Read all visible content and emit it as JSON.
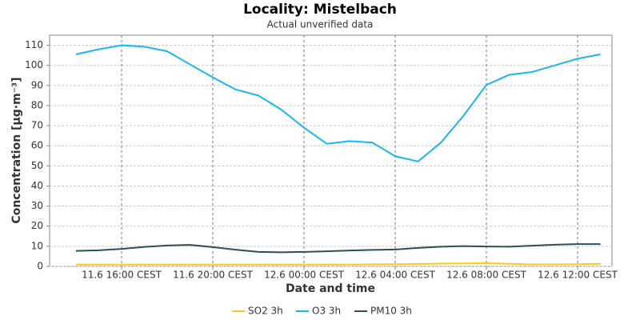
{
  "chart_data": {
    "type": "line",
    "title": "Locality: Mistelbach",
    "subtitle": "Actual unverified data",
    "x_label": "Date and time",
    "y_label": "Concentration [µg·m⁻³]",
    "x": [
      "11.6 14:00 CEST",
      "11.6 15:00 CEST",
      "11.6 16:00 CEST",
      "11.6 17:00 CEST",
      "11.6 18:00 CEST",
      "11.6 19:00 CEST",
      "11.6 20:00 CEST",
      "11.6 21:00 CEST",
      "11.6 22:00 CEST",
      "11.6 23:00 CEST",
      "12.6 00:00 CEST",
      "12.6 01:00 CEST",
      "12.6 02:00 CEST",
      "12.6 03:00 CEST",
      "12.6 04:00 CEST",
      "12.6 05:00 CEST",
      "12.6 06:00 CEST",
      "12.6 07:00 CEST",
      "12.6 08:00 CEST",
      "12.6 09:00 CEST",
      "12.6 10:00 CEST",
      "12.6 11:00 CEST",
      "12.6 12:00 CEST",
      "12.6 13:00 CEST"
    ],
    "xticks": [
      "11.6 16:00 CEST",
      "11.6 20:00 CEST",
      "12.6 00:00 CEST",
      "12.6 04:00 CEST",
      "12.6 08:00 CEST",
      "12.6 12:00 CEST"
    ],
    "series": [
      {
        "name": "SO2 3h",
        "color": "#ffc81e",
        "values": [
          0.9,
          0.9,
          0.9,
          0.9,
          0.9,
          0.9,
          0.9,
          0.9,
          0.9,
          0.9,
          0.9,
          0.9,
          0.9,
          1.0,
          1.1,
          1.2,
          1.4,
          1.5,
          1.6,
          1.3,
          1.0,
          1.0,
          1.1,
          1.3
        ]
      },
      {
        "name": "O3 3h",
        "color": "#1ab6f0",
        "values": [
          105.5,
          108,
          110,
          109.3,
          107,
          100.5,
          94,
          88,
          85,
          78,
          69,
          61,
          62.3,
          61.6,
          54.8,
          52.2,
          61.5,
          75,
          90.3,
          95.3,
          96.7,
          100,
          103.3,
          105.5
        ]
      },
      {
        "name": "PM10 3h",
        "color": "#2f4f4f",
        "values": [
          7.7,
          8,
          8.7,
          9.7,
          10.4,
          10.7,
          9.6,
          8.3,
          7.2,
          7,
          7.2,
          7.5,
          7.9,
          8.2,
          8.4,
          9.2,
          9.8,
          10.1,
          9.9,
          9.8,
          10.3,
          10.8,
          11.1,
          11.1
        ]
      }
    ],
    "ylim": [
      0,
      115
    ],
    "yticks": [
      0,
      10,
      20,
      30,
      40,
      50,
      60,
      70,
      80,
      90,
      100,
      110
    ],
    "grid": true,
    "legend": "bottom"
  }
}
